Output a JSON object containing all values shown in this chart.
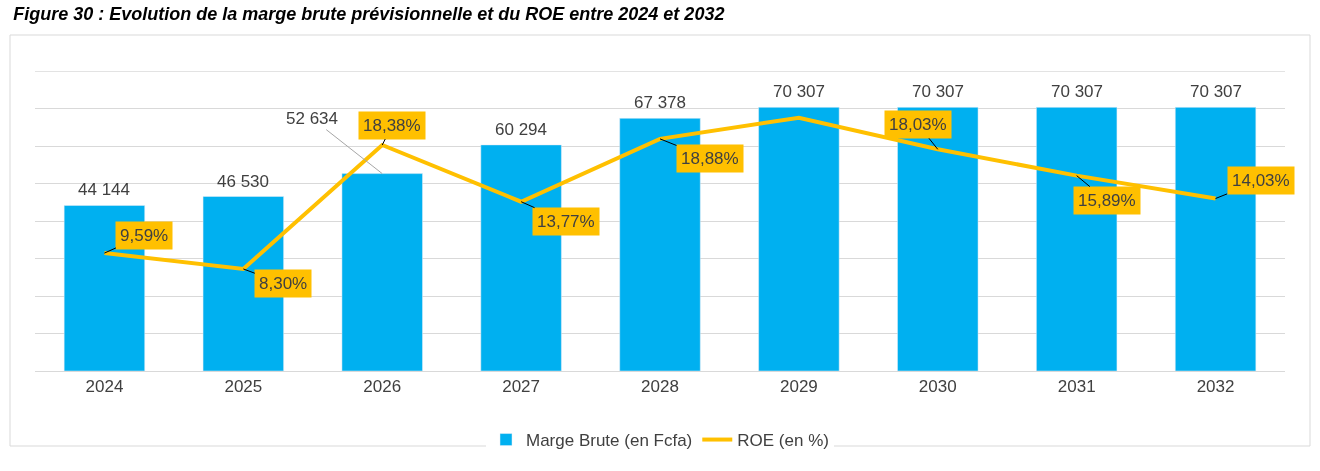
{
  "chart_data": {
    "type": "bar",
    "title": "Figure 30 : Evolution de la marge brute prévisionnelle et du ROE entre 2024 et 2032",
    "categories": [
      "2024",
      "2025",
      "2026",
      "2027",
      "2028",
      "2029",
      "2030",
      "2031",
      "2032"
    ],
    "series": [
      {
        "name": "Marge Brute (en Fcfa)",
        "color": "#00b0f0",
        "values": [
          44144,
          46530,
          52634,
          60294,
          67378,
          70307,
          70307,
          70307,
          70307
        ],
        "value_labels": [
          "44 144",
          "46 530",
          "52 634",
          "60 294",
          "67 378",
          "70 307",
          "70 307",
          "70 307",
          "70 307"
        ]
      },
      {
        "name": "ROE (en %)",
        "type": "line",
        "axis": "y2",
        "color": "#ffc000",
        "values": [
          9.59,
          8.3,
          18.38,
          13.77,
          18.88,
          20.6,
          18.03,
          15.89,
          14.03
        ],
        "value_labels": [
          "9,59%",
          "8,30%",
          "18,38%",
          "13,77%",
          "18,88%",
          null,
          "18,03%",
          "15,89%",
          "14,03%"
        ]
      }
    ],
    "ylim": [
      0,
      80000
    ],
    "yticks": [
      {
        "value": 0,
        "label": null
      },
      {
        "value": 10000,
        "label": null
      },
      {
        "value": 20000,
        "label": null
      },
      {
        "value": 30000,
        "label": null
      },
      {
        "value": 40000,
        "label": null
      },
      {
        "value": 50000,
        "label": null
      },
      {
        "value": 60000,
        "label": null
      },
      {
        "value": 70000,
        "label": null
      },
      {
        "value": 80000,
        "label": null
      }
    ],
    "y2lim": [
      0,
      24.4
    ],
    "tick_labels": "x",
    "grid": "y",
    "legend": "bottom"
  }
}
